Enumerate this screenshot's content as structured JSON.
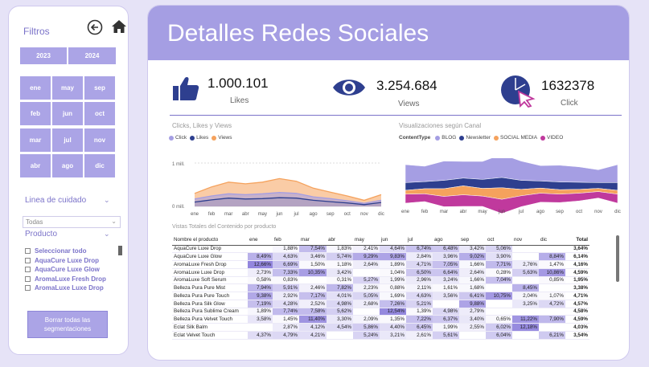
{
  "sidebar": {
    "title": "Filtros",
    "years": [
      "2023",
      "2024"
    ],
    "months": [
      [
        "ene",
        "may",
        "sep"
      ],
      [
        "feb",
        "jun",
        "oct"
      ],
      [
        "mar",
        "jul",
        "nov"
      ],
      [
        "abr",
        "ago",
        "dic"
      ]
    ],
    "care_line": {
      "title": "Linea de cuidado",
      "selected": "Todas"
    },
    "product": {
      "title": "Producto",
      "items": [
        "Seleccionar todo",
        "AquaCure Luxe Drop",
        "AquaCure Luxe Glow",
        "AromaLuxe Fresh Drop",
        "AromaLuxe Luxe Drop"
      ]
    },
    "clear_button": {
      "line1": "Borrar todas las",
      "line2": "segmentaciones"
    }
  },
  "header": {
    "title": "Detalles Redes Sociales"
  },
  "kpis": {
    "likes": {
      "value": "1.000.101",
      "label": "Likes"
    },
    "views": {
      "value": "3.254.684",
      "label": "Views"
    },
    "click": {
      "value": "1632378",
      "label": "Click"
    }
  },
  "charts": {
    "left": {
      "title": "Clicks, Likes y Views",
      "legend": [
        {
          "name": "Click",
          "color": "#a59ee3"
        },
        {
          "name": "Likes",
          "color": "#2e3f8f"
        },
        {
          "name": "Views",
          "color": "#f5a25d"
        }
      ],
      "y_ticks": [
        "1 mill.",
        "0 mill."
      ]
    },
    "right": {
      "title": "Visualizaciones según Canal",
      "legend_label": "ContentType",
      "legend": [
        {
          "name": "BLOG",
          "color": "#a59ee3"
        },
        {
          "name": "Newsletter",
          "color": "#2e3f8f"
        },
        {
          "name": "SOCIAL MEDIA",
          "color": "#f5a25d"
        },
        {
          "name": "VIDEO",
          "color": "#c0399d"
        }
      ]
    }
  },
  "chart_data": [
    {
      "type": "area",
      "title": "Clicks, Likes y Views",
      "categories": [
        "ene",
        "feb",
        "mar",
        "abr",
        "may",
        "jun",
        "jul",
        "ago",
        "sep",
        "oct",
        "nov",
        "dic"
      ],
      "ylim": [
        0,
        1000000
      ],
      "series": [
        {
          "name": "Views",
          "values": [
            300000,
            450000,
            560000,
            520000,
            560000,
            640000,
            580000,
            420000,
            330000,
            240000,
            140000,
            270000
          ]
        },
        {
          "name": "Click",
          "values": [
            170000,
            240000,
            290000,
            270000,
            290000,
            320000,
            300000,
            220000,
            180000,
            130000,
            70000,
            140000
          ]
        },
        {
          "name": "Likes",
          "values": [
            100000,
            150000,
            190000,
            170000,
            180000,
            200000,
            190000,
            140000,
            110000,
            80000,
            40000,
            90000
          ]
        }
      ]
    },
    {
      "type": "area",
      "title": "Visualizaciones según Canal",
      "categories": [
        "ene",
        "feb",
        "mar",
        "abr",
        "may",
        "jun",
        "jul",
        "ago",
        "sep",
        "oct",
        "nov",
        "dic"
      ],
      "series": [
        {
          "name": "BLOG",
          "values": [
            140,
            120,
            150,
            130,
            140,
            180,
            150,
            120,
            130,
            120,
            100,
            140
          ]
        },
        {
          "name": "Newsletter",
          "values": [
            60,
            55,
            65,
            60,
            70,
            80,
            70,
            55,
            60,
            55,
            45,
            60
          ]
        },
        {
          "name": "SOCIAL MEDIA",
          "values": [
            30,
            40,
            60,
            70,
            60,
            90,
            50,
            40,
            35,
            30,
            25,
            30
          ]
        },
        {
          "name": "VIDEO",
          "values": [
            70,
            60,
            80,
            90,
            80,
            110,
            85,
            70,
            65,
            60,
            50,
            70
          ]
        }
      ]
    }
  ],
  "table": {
    "title": "Vistas Totales del Contenido por producto",
    "columns": [
      "Nombre el producto",
      "ene",
      "feb",
      "mar",
      "abr",
      "may",
      "jun",
      "jul",
      "ago",
      "sep",
      "oct",
      "nov",
      "dic",
      "Total"
    ],
    "rows": [
      [
        "AquaCure Luxe Drop",
        "",
        "1,88%",
        "7,54%",
        "1,83%",
        "2,41%",
        "4,64%",
        "6,74%",
        "6,48%",
        "3,42%",
        "5,06%",
        "",
        "",
        "3,64%"
      ],
      [
        "AquaCure Luxe Glow",
        "8,49%",
        "4,63%",
        "3,46%",
        "5,74%",
        "9,29%",
        "9,83%",
        "2,84%",
        "3,96%",
        "9,02%",
        "3,90%",
        "",
        "8,84%",
        "6,14%"
      ],
      [
        "AromaLuxe Fresh Drop",
        "12,66%",
        "6,69%",
        "1,50%",
        "1,18%",
        "2,64%",
        "1,89%",
        "4,71%",
        "7,05%",
        "1,66%",
        "7,71%",
        "2,76%",
        "1,47%",
        "4,16%"
      ],
      [
        "AromaLuxe Luxe Drop",
        "2,73%",
        "7,33%",
        "10,35%",
        "3,42%",
        "",
        "1,04%",
        "6,50%",
        "6,64%",
        "2,64%",
        "0,28%",
        "5,63%",
        "10,86%",
        "4,59%"
      ],
      [
        "AromaLuxe Soft Serum",
        "0,58%",
        "0,83%",
        "",
        "0,31%",
        "5,27%",
        "1,99%",
        "2,96%",
        "3,24%",
        "1,66%",
        "7,04%",
        "",
        "0,85%",
        "1,95%"
      ],
      [
        "Belleza Pura Pure Mist",
        "7,94%",
        "5,91%",
        "2,46%",
        "7,82%",
        "2,23%",
        "0,88%",
        "2,11%",
        "1,61%",
        "1,68%",
        "",
        "8,45%",
        "",
        "3,38%"
      ],
      [
        "Belleza Pura Pure Touch",
        "9,38%",
        "2,92%",
        "7,17%",
        "4,01%",
        "5,05%",
        "1,69%",
        "4,63%",
        "3,56%",
        "6,41%",
        "10,75%",
        "2,04%",
        "1,07%",
        "4,71%"
      ],
      [
        "Belleza Pura Silk Glow",
        "7,19%",
        "4,28%",
        "2,52%",
        "4,98%",
        "2,68%",
        "7,26%",
        "5,21%",
        "",
        "9,88%",
        "",
        "3,25%",
        "4,72%",
        "4,57%"
      ],
      [
        "Belleza Pura Sublime Cream",
        "1,89%",
        "7,74%",
        "7,58%",
        "5,62%",
        "",
        "12,54%",
        "1,39%",
        "4,98%",
        "2,79%",
        "",
        "",
        "",
        "4,58%"
      ],
      [
        "Belleza Pura Velvet Touch",
        "3,58%",
        "1,45%",
        "11,40%",
        "3,30%",
        "2,09%",
        "1,35%",
        "7,22%",
        "6,37%",
        "3,40%",
        "0,65%",
        "11,22%",
        "7,90%",
        "4,59%"
      ],
      [
        "Eclat Silk Balm",
        "",
        "2,87%",
        "4,12%",
        "4,54%",
        "5,86%",
        "4,40%",
        "6,45%",
        "1,99%",
        "2,55%",
        "6,02%",
        "12,18%",
        "",
        "4,03%"
      ],
      [
        "Eclat Velvet Touch",
        "4,37%",
        "4,79%",
        "4,21%",
        "",
        "5,24%",
        "3,21%",
        "2,61%",
        "5,61%",
        "",
        "6,04%",
        "",
        "6,21%",
        "3,54%"
      ]
    ]
  }
}
